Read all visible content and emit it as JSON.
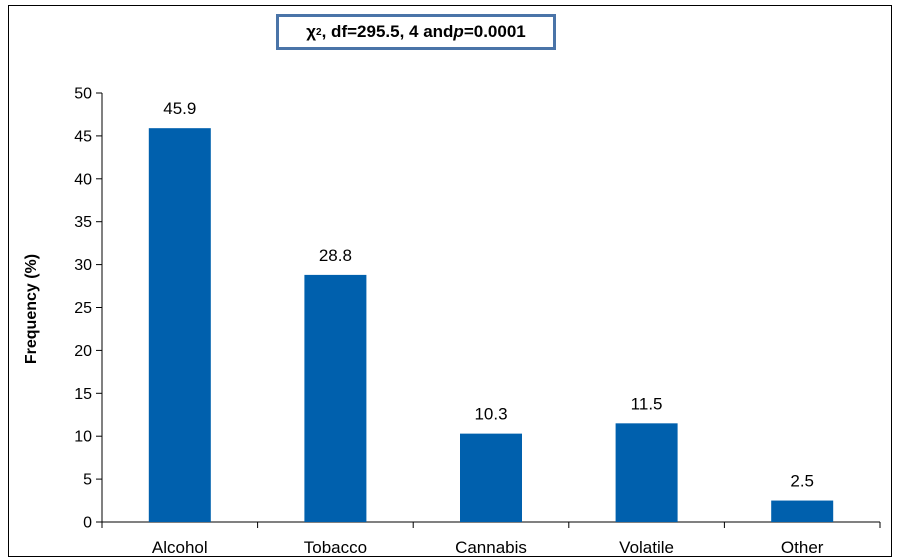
{
  "chart_data": {
    "type": "bar",
    "categories": [
      "Alcohol",
      "Tobacco",
      "Cannabis",
      "Volatile",
      "Other"
    ],
    "values": [
      45.9,
      28.8,
      10.3,
      11.5,
      2.5
    ],
    "data_labels": [
      "45.9",
      "28.8",
      "10.3",
      "11.5",
      "2.5"
    ],
    "ylabel": "Frequency (%)",
    "ylim": [
      0,
      50
    ],
    "yticks": [
      0,
      5,
      10,
      15,
      20,
      25,
      30,
      35,
      40,
      45,
      50
    ],
    "bar_color": "#0060ad",
    "grid": false,
    "annotation": {
      "chi_symbol": "χ",
      "exponent": "2",
      "rest_a": ", df=295.5, 4 and ",
      "p_letter": "p",
      "rest_b": "=0.0001"
    }
  }
}
